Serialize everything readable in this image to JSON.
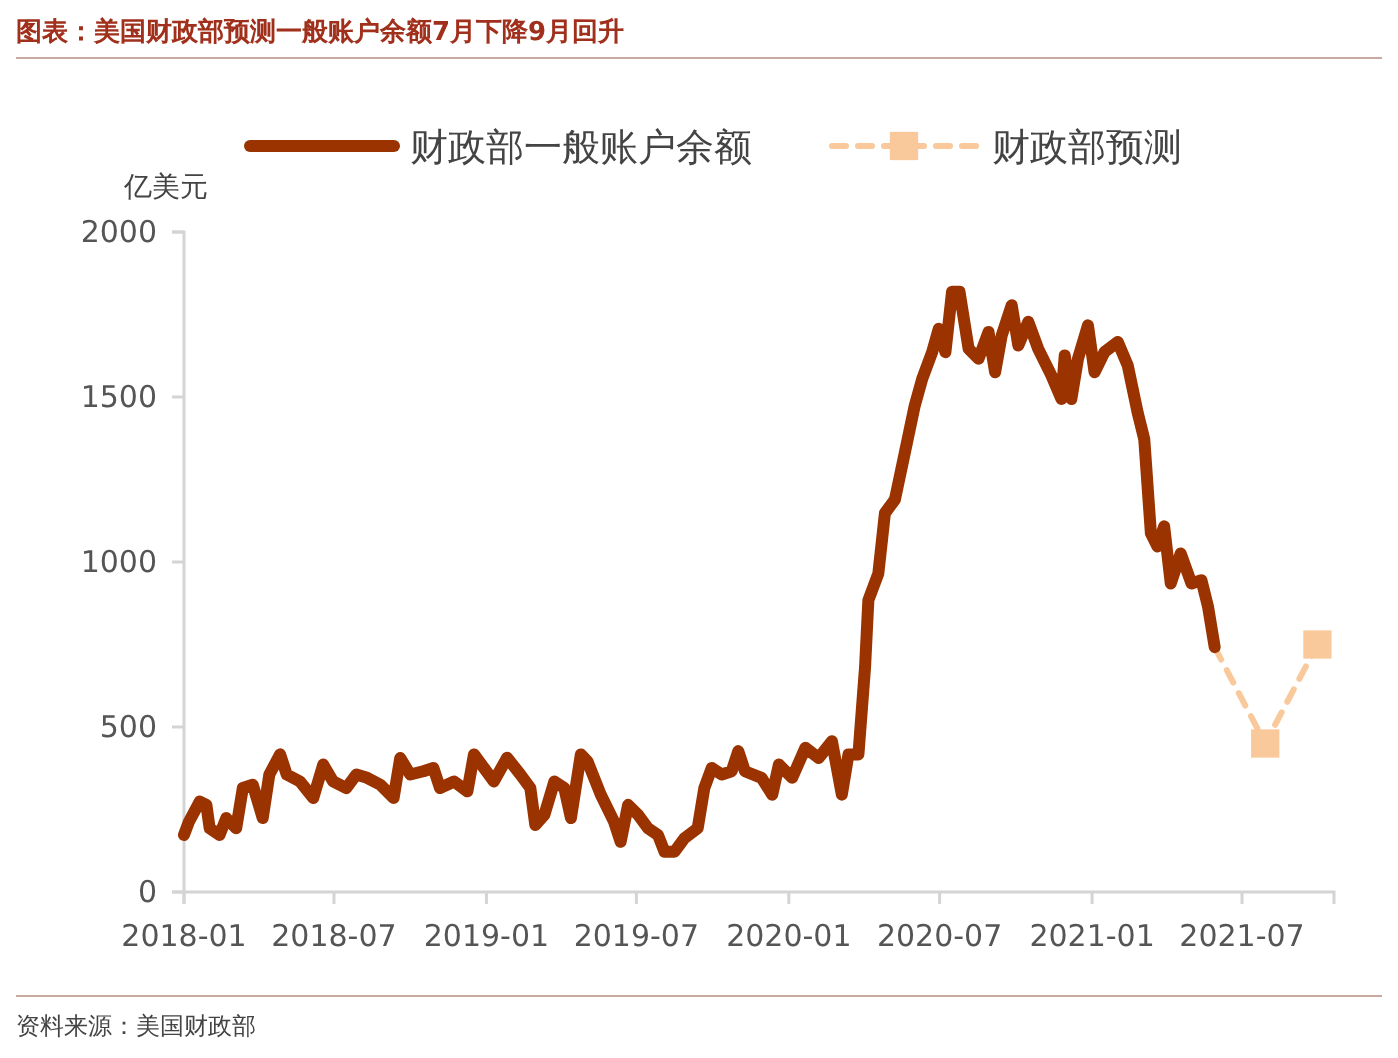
{
  "chart_data": {
    "type": "line",
    "title": "图表：美国财政部预测一般账户余额7月下降9月回升",
    "ylabel": "亿美元",
    "annotations": [
      "资料来源：美国财政部"
    ],
    "xlim": [
      "2018-01-01",
      "2021-10-20"
    ],
    "xticks": [
      "2018-01",
      "2018-07",
      "2019-01",
      "2019-07",
      "2020-01",
      "2020-07",
      "2021-01",
      "2021-07"
    ],
    "ylim": [
      0,
      2000
    ],
    "yticks": [
      0,
      500,
      1000,
      1500,
      2000
    ],
    "grid": false,
    "legend": "top",
    "series": [
      {
        "name": "财政部预测",
        "color": "#f9c89b",
        "line_style": "dashed",
        "marker": "square",
        "x": [
          "2021-05-29",
          "2021-07-29",
          "2021-09-30"
        ],
        "values": [
          742,
          450,
          750
        ]
      },
      {
        "name": "财政部一般账户余额",
        "color": "#9a3300",
        "line_style": "solid",
        "marker": "none",
        "x": [
          "2018-01-01",
          "2018-01-07",
          "2018-01-20",
          "2018-01-28",
          "2018-02-01",
          "2018-02-13",
          "2018-02-21",
          "2018-03-05",
          "2018-03-13",
          "2018-03-25",
          "2018-04-06",
          "2018-04-14",
          "2018-04-27",
          "2018-05-05",
          "2018-05-21",
          "2018-06-06",
          "2018-06-18",
          "2018-06-30",
          "2018-07-16",
          "2018-07-28",
          "2018-08-10",
          "2018-08-26",
          "2018-09-11",
          "2018-09-19",
          "2018-10-01",
          "2018-10-17",
          "2018-10-29",
          "2018-11-06",
          "2018-11-23",
          "2018-12-09",
          "2018-12-17",
          "2018-12-29",
          "2019-01-10",
          "2019-01-26",
          "2019-02-11",
          "2019-02-23",
          "2019-03-01",
          "2019-03-12",
          "2019-03-24",
          "2019-04-05",
          "2019-04-13",
          "2019-04-25",
          "2019-05-03",
          "2019-05-19",
          "2019-06-04",
          "2019-06-12",
          "2019-06-21",
          "2019-07-03",
          "2019-07-15",
          "2019-07-27",
          "2019-08-04",
          "2019-08-16",
          "2019-08-28",
          "2019-09-13",
          "2019-09-21",
          "2019-09-30",
          "2019-10-12",
          "2019-10-24",
          "2019-11-01",
          "2019-11-09",
          "2019-11-29",
          "2019-12-12",
          "2019-12-20",
          "2020-01-05",
          "2020-01-21",
          "2020-02-06",
          "2020-02-22",
          "2020-03-05",
          "2020-03-13",
          "2020-03-25",
          "2020-04-02",
          "2020-04-06",
          "2020-04-18",
          "2020-04-26",
          "2020-05-08",
          "2020-05-20",
          "2020-06-01",
          "2020-06-10",
          "2020-06-22",
          "2020-06-30",
          "2020-07-08",
          "2020-07-16",
          "2020-07-25",
          "2020-08-05",
          "2020-08-17",
          "2020-08-29",
          "2020-09-06",
          "2020-09-14",
          "2020-09-26",
          "2020-10-04",
          "2020-10-16",
          "2020-10-28",
          "2020-11-13",
          "2020-11-25",
          "2020-11-29",
          "2020-12-07",
          "2020-12-15",
          "2020-12-27",
          "2021-01-04",
          "2021-01-16",
          "2021-02-01",
          "2021-02-13",
          "2021-02-25",
          "2021-03-05",
          "2021-03-13",
          "2021-03-21",
          "2021-03-29",
          "2021-04-06",
          "2021-04-18",
          "2021-05-01",
          "2021-05-13",
          "2021-05-21",
          "2021-05-29"
        ],
        "values": [
          173,
          213,
          274,
          264,
          193,
          173,
          224,
          193,
          315,
          325,
          224,
          356,
          417,
          356,
          335,
          285,
          386,
          335,
          315,
          356,
          346,
          325,
          285,
          406,
          356,
          366,
          376,
          315,
          335,
          305,
          417,
          376,
          335,
          407,
          356,
          315,
          203,
          234,
          335,
          315,
          224,
          417,
          396,
          295,
          213,
          152,
          264,
          234,
          193,
          173,
          122,
          122,
          163,
          193,
          315,
          376,
          356,
          366,
          427,
          366,
          346,
          295,
          386,
          346,
          437,
          406,
          457,
          295,
          417,
          417,
          681,
          884,
          965,
          1148,
          1189,
          1331,
          1474,
          1555,
          1636,
          1707,
          1636,
          1819,
          1819,
          1646,
          1616,
          1697,
          1575,
          1687,
          1778,
          1656,
          1728,
          1646,
          1565,
          1494,
          1626,
          1494,
          1616,
          1717,
          1575,
          1636,
          1667,
          1596,
          1453,
          1372,
          1087,
          1047,
          1108,
          935,
          1026,
          935,
          945,
          864,
          742
        ]
      }
    ]
  }
}
